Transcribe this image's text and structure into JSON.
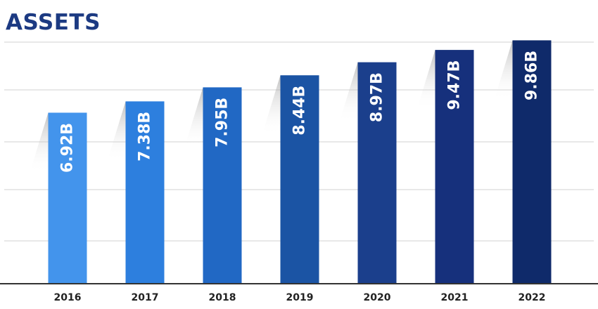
{
  "chart_data": {
    "type": "bar",
    "title": "ASSETS",
    "xlabel": "",
    "ylabel": "",
    "categories": [
      "2016",
      "2017",
      "2018",
      "2019",
      "2020",
      "2021",
      "2022"
    ],
    "values": [
      6.92,
      7.38,
      7.95,
      8.44,
      8.97,
      9.47,
      9.86
    ],
    "value_labels": [
      "6.92B",
      "7.38B",
      "7.95B",
      "8.44B",
      "8.97B",
      "9.47B",
      "9.86B"
    ],
    "ylim": [
      0,
      10.5
    ],
    "grid": true,
    "colors": [
      "#4394ec",
      "#2d7fde",
      "#2168c4",
      "#1b54a4",
      "#1b3f8c",
      "#16307c",
      "#0f2a6a"
    ],
    "title_color": "#1c3a82",
    "gridline_color": "#d9d9d9",
    "axis_color": "#333333"
  }
}
